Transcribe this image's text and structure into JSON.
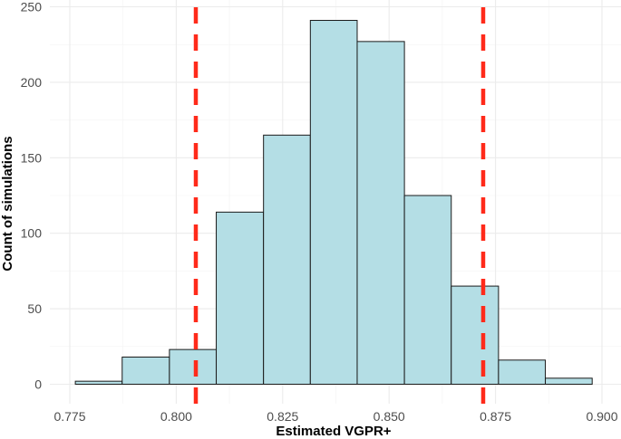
{
  "chart_data": {
    "type": "bar",
    "subtype": "histogram",
    "xlabel": "Estimated VGPR+",
    "ylabel": "Count of simulations",
    "xlim": [
      0.7735,
      0.9005
    ],
    "ylim": [
      0,
      250
    ],
    "x_ticks": [
      "0.775",
      "0.800",
      "0.825",
      "0.850",
      "0.875",
      "0.900"
    ],
    "x_tick_values": [
      0.775,
      0.8,
      0.825,
      0.85,
      0.875,
      0.9
    ],
    "y_ticks": [
      "0",
      "50",
      "100",
      "150",
      "200",
      "250"
    ],
    "y_tick_values": [
      0,
      50,
      100,
      150,
      200,
      250
    ],
    "bin_edges": [
      0.7763,
      0.7873,
      0.7984,
      0.8094,
      0.8205,
      0.8315,
      0.8425,
      0.8536,
      0.8646,
      0.8757,
      0.8867,
      0.8977
    ],
    "values": [
      2,
      18,
      23,
      114,
      165,
      241,
      227,
      125,
      65,
      16,
      4
    ],
    "reference_lines": [
      0.8046,
      0.8721
    ],
    "grid": true,
    "colors": {
      "bar_fill": "#b4dee5",
      "bar_stroke": "#1a1a1a",
      "reference_line": "#ff2a1a",
      "grid": "#ebebeb"
    }
  }
}
